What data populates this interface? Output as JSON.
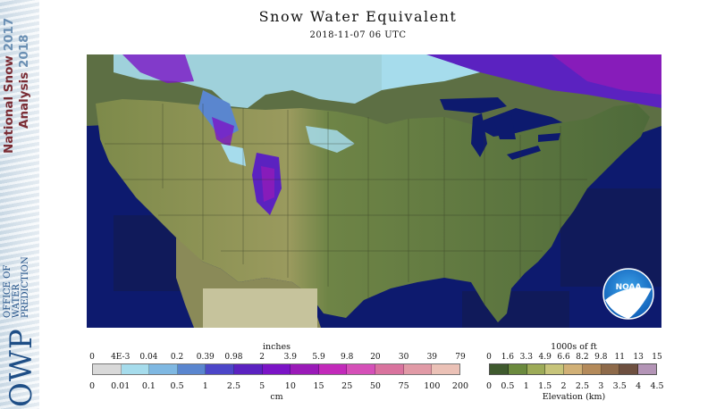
{
  "branding": {
    "program_name": "National Snow",
    "program_name_2": "Analysis",
    "season_1": "2017",
    "season_2": "2018",
    "office_abbr": "OWP",
    "office_line_1": "OFFICE OF",
    "office_line_2": "WATER",
    "office_line_3": "PREDICTION",
    "noaa_logo_text": "NOAA"
  },
  "title": "Snow Water Equivalent",
  "timestamp": "2018-11-07 06 UTC",
  "swe_legend": {
    "top_unit": "inches",
    "bottom_unit": "cm",
    "inch_ticks": [
      "0",
      "4E-3",
      "0.04",
      "0.2",
      "0.39",
      "0.98",
      "2",
      "3.9",
      "5.9",
      "9.8",
      "20",
      "30",
      "39",
      "79"
    ],
    "cm_ticks": [
      "0",
      "0.01",
      "0.1",
      "0.5",
      "1",
      "2.5",
      "5",
      "10",
      "15",
      "25",
      "50",
      "75",
      "100",
      "200"
    ],
    "colors": [
      "#d9d9d9",
      "#a6dcec",
      "#7fb8e2",
      "#5a86cf",
      "#4c46c8",
      "#5b22c0",
      "#7b14c6",
      "#9a1ab8",
      "#c22aba",
      "#d550b8",
      "#d9739e",
      "#e19aa6",
      "#ebc1b6"
    ]
  },
  "elevation_legend": {
    "top_unit": "1000s of ft",
    "bottom_unit": "Elevation (km)",
    "ft_ticks": [
      "0",
      "1.6",
      "3.3",
      "4.9",
      "6.6",
      "8.2",
      "9.8",
      "11",
      "13",
      "15"
    ],
    "km_ticks": [
      "0",
      "0.5",
      "1",
      "1.5",
      "2",
      "2.5",
      "3",
      "3.5",
      "4",
      "4.5"
    ],
    "colors": [
      "#3f5a2e",
      "#6b8a3e",
      "#9dab58",
      "#c7c47a",
      "#d1b076",
      "#b48a5a",
      "#8e6a4a",
      "#6e5040",
      "#b394b6"
    ]
  }
}
